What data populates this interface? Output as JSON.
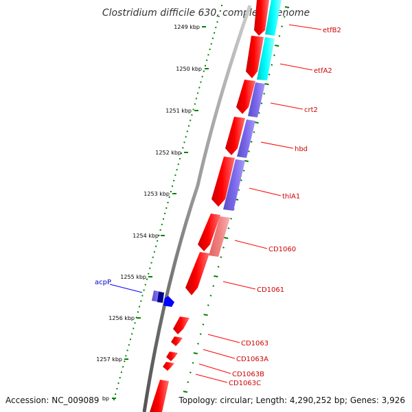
{
  "title": "Clostridium difficile 630, complete genome",
  "accession": "Accession: NC_009089",
  "topology": "Topology: circular; Length: 4,290,252 bp; Genes: 3,926",
  "ticks": [
    {
      "label": "1249 kbp"
    },
    {
      "label": "1250 kbp"
    },
    {
      "label": "1251 kbp"
    },
    {
      "label": "1252 kbp"
    },
    {
      "label": "1253 kbp"
    },
    {
      "label": "1254 kbp"
    },
    {
      "label": "1255 kbp"
    },
    {
      "label": "1256 kbp"
    },
    {
      "label": "1257 kbp"
    },
    {
      "label": "bp"
    }
  ],
  "genes": [
    {
      "name": "etfB2",
      "strand": "forward"
    },
    {
      "name": "etfA2",
      "strand": "forward"
    },
    {
      "name": "crt2",
      "strand": "forward"
    },
    {
      "name": "hbd",
      "strand": "forward"
    },
    {
      "name": "thlA1",
      "strand": "forward"
    },
    {
      "name": "CD1060",
      "strand": "forward"
    },
    {
      "name": "CD1061",
      "strand": "forward"
    },
    {
      "name": "acpP",
      "strand": "reverse"
    },
    {
      "name": "CD1063",
      "strand": "forward"
    },
    {
      "name": "CD1063A",
      "strand": "forward"
    },
    {
      "name": "CD1063B",
      "strand": "forward"
    },
    {
      "name": "CD1063C",
      "strand": "forward"
    }
  ],
  "colors": {
    "forward_strand": "#ff0000",
    "reverse_strand": "#0000ff",
    "forward_label": "#cc0000",
    "reverse_label": "#0000cc",
    "backbone": "#888888",
    "tick": "#008000",
    "cog_energy": "#00ffff",
    "cog_lipid": "#7b68ee",
    "cog_unknown": "#f08080"
  }
}
